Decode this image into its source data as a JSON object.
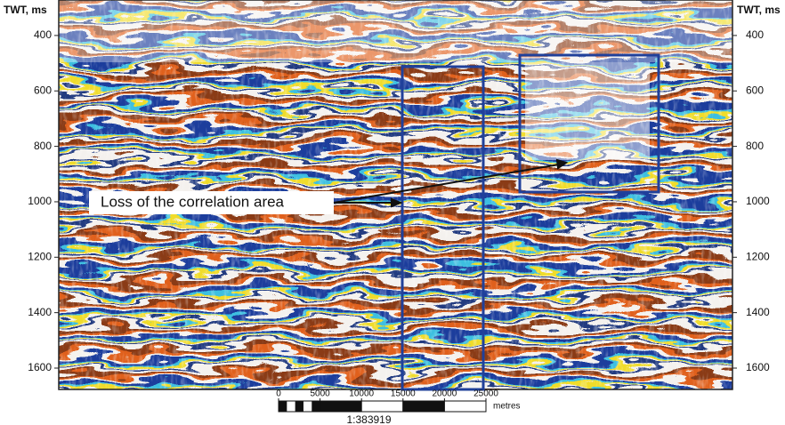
{
  "chart_data": {
    "type": "seismic-section",
    "y_label": "TWT, ms",
    "annotation": "Loss of the correlation area",
    "ylim": [
      272,
      1677
    ],
    "yticks": [
      400,
      600,
      800,
      1000,
      1200,
      1400,
      1600
    ],
    "scale_bar": {
      "ticks": [
        0,
        5000,
        10000,
        15000,
        20000,
        25000
      ],
      "unit": "metres",
      "ratio": "1:383919"
    }
  }
}
